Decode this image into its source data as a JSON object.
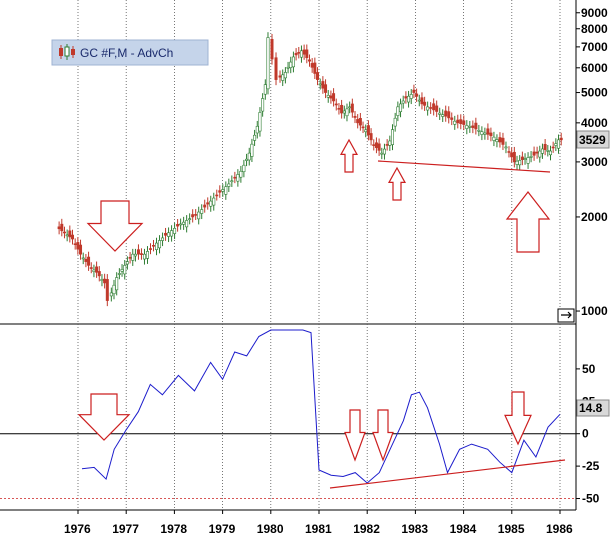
{
  "chart_data": [
    {
      "type": "candlestick",
      "legend": "GC #F,M - AdvCh",
      "scale": "log",
      "ylim": [
        950,
        9600
      ],
      "y_ticks": [
        1000,
        2000,
        3000,
        3500,
        4000,
        5000,
        6000,
        7000,
        8000,
        9000
      ],
      "last_value": "3529",
      "colors": {
        "up": "#2e7d32",
        "down": "#c0392b",
        "annotation": "#cc1f1f"
      },
      "x_ticks": [
        "1976",
        "1977",
        "1978",
        "1979",
        "1980",
        "1981",
        "1982",
        "1983",
        "1984",
        "1985",
        "1986"
      ],
      "series": [
        {
          "values": [
            [
              "1975-08",
              1860
            ],
            [
              "1975-10",
              1780
            ],
            [
              "1975-12",
              1700
            ],
            [
              "1976-02",
              1520
            ],
            [
              "1976-04",
              1400
            ],
            [
              "1976-06",
              1330
            ],
            [
              "1976-08",
              1230
            ],
            [
              "1976-09",
              1080
            ],
            [
              "1976-11",
              1280
            ],
            [
              "1977-01",
              1400
            ],
            [
              "1977-03",
              1520
            ],
            [
              "1977-06",
              1520
            ],
            [
              "1977-09",
              1650
            ],
            [
              "1977-12",
              1780
            ],
            [
              "1978-03",
              1900
            ],
            [
              "1978-06",
              2000
            ],
            [
              "1978-09",
              2150
            ],
            [
              "1978-12",
              2350
            ],
            [
              "1979-03",
              2550
            ],
            [
              "1979-06",
              2800
            ],
            [
              "1979-08",
              3200
            ],
            [
              "1979-10",
              3900
            ],
            [
              "1979-12",
              5300
            ],
            [
              "1980-01",
              7500
            ],
            [
              "1980-02",
              6400
            ],
            [
              "1980-03",
              5500
            ],
            [
              "1980-05",
              5800
            ],
            [
              "1980-07",
              6500
            ],
            [
              "1980-09",
              6800
            ],
            [
              "1980-11",
              6300
            ],
            [
              "1981-01",
              5500
            ],
            [
              "1981-03",
              5000
            ],
            [
              "1981-05",
              4700
            ],
            [
              "1981-07",
              4300
            ],
            [
              "1981-09",
              4500
            ],
            [
              "1981-11",
              4000
            ],
            [
              "1982-01",
              3800
            ],
            [
              "1982-03",
              3400
            ],
            [
              "1982-05",
              3200
            ],
            [
              "1982-07",
              3500
            ],
            [
              "1982-09",
              4500
            ],
            [
              "1982-11",
              4800
            ],
            [
              "1983-01",
              5000
            ],
            [
              "1983-03",
              4600
            ],
            [
              "1983-06",
              4400
            ],
            [
              "1983-09",
              4200
            ],
            [
              "1983-12",
              4000
            ],
            [
              "1984-03",
              3900
            ],
            [
              "1984-06",
              3750
            ],
            [
              "1984-09",
              3600
            ],
            [
              "1984-12",
              3350
            ],
            [
              "1985-02",
              3000
            ],
            [
              "1985-04",
              3050
            ],
            [
              "1985-07",
              3150
            ],
            [
              "1985-09",
              3300
            ],
            [
              "1985-11",
              3250
            ],
            [
              "1986-01",
              3529
            ]
          ]
        }
      ]
    },
    {
      "type": "line",
      "ylim": [
        -55,
        80
      ],
      "y_ticks": [
        -50,
        -25,
        0,
        25,
        50
      ],
      "last_value": "14.8",
      "hlines": [
        0,
        -50
      ],
      "colors": {
        "line": "#1c1ccc",
        "zero": "#000000",
        "lower": "#cc1f1f"
      },
      "series": [
        {
          "values": [
            [
              "1976-02",
              -27
            ],
            [
              "1976-05",
              -26
            ],
            [
              "1976-08",
              -35
            ],
            [
              "1976-10",
              -12
            ],
            [
              "1977-01",
              3
            ],
            [
              "1977-04",
              17
            ],
            [
              "1977-07",
              38
            ],
            [
              "1977-10",
              30
            ],
            [
              "1978-02",
              45
            ],
            [
              "1978-06",
              33
            ],
            [
              "1978-10",
              55
            ],
            [
              "1979-01",
              42
            ],
            [
              "1979-04",
              63
            ],
            [
              "1979-07",
              60
            ],
            [
              "1979-10",
              75
            ],
            [
              "1980-01",
              80
            ],
            [
              "1980-05",
              80
            ],
            [
              "1980-09",
              80
            ],
            [
              "1980-11",
              78
            ],
            [
              "1981-01",
              -28
            ],
            [
              "1981-04",
              -32
            ],
            [
              "1981-07",
              -33
            ],
            [
              "1981-10",
              -30
            ],
            [
              "1982-01",
              -38
            ],
            [
              "1982-04",
              -30
            ],
            [
              "1982-07",
              -10
            ],
            [
              "1982-10",
              10
            ],
            [
              "1982-12",
              30
            ],
            [
              "1983-02",
              32
            ],
            [
              "1983-04",
              20
            ],
            [
              "1983-07",
              -8
            ],
            [
              "1983-09",
              -30
            ],
            [
              "1983-12",
              -12
            ],
            [
              "1984-03",
              -8
            ],
            [
              "1984-07",
              -12
            ],
            [
              "1984-10",
              -22
            ],
            [
              "1985-01",
              -30
            ],
            [
              "1985-04",
              -5
            ],
            [
              "1985-07",
              -18
            ],
            [
              "1985-10",
              5
            ],
            [
              "1986-01",
              15
            ]
          ]
        }
      ]
    }
  ]
}
